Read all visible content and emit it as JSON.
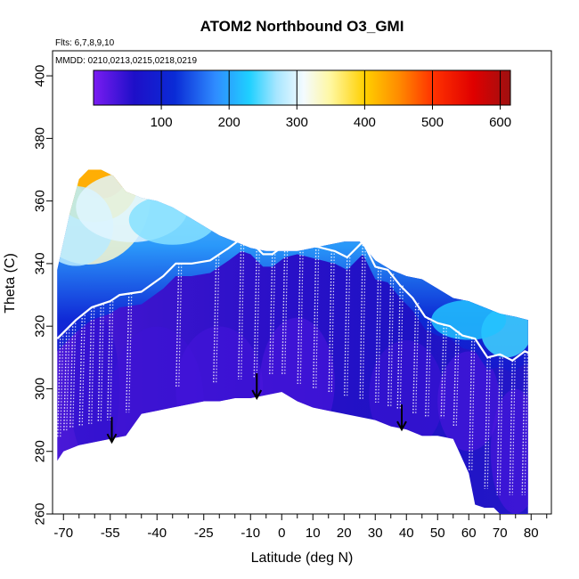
{
  "chart_data": {
    "type": "heatmap",
    "title": "ATOM2 Northbound O3_GMI",
    "subtitle_flights": "Flts: 6,7,8,9,10",
    "subtitle_dates": "MMDD: 0210,0213,0215,0218,0219",
    "xlabel": "Latitude (deg N)",
    "ylabel": "Theta (C)",
    "xlim": [
      -73.5,
      86.5
    ],
    "ylim": [
      260,
      408
    ],
    "x_ticks": [
      -70,
      -55,
      -40,
      -25,
      -10,
      0,
      10,
      20,
      30,
      40,
      50,
      60,
      70,
      80
    ],
    "x_tick_labels": [
      "-70",
      "-55",
      "-40",
      "-25",
      "-10",
      "0",
      "10",
      "20",
      "30",
      "40",
      "50",
      "60",
      "70",
      "80"
    ],
    "x_minor_ticks": [
      -65,
      -60,
      -50,
      -45,
      -35,
      -30,
      -20,
      -15,
      -5,
      5,
      15,
      25,
      35,
      45,
      55,
      65,
      75,
      85
    ],
    "y_ticks": [
      260,
      280,
      300,
      320,
      340,
      360,
      380,
      400
    ],
    "y_tick_labels": [
      "260",
      "280",
      "300",
      "320",
      "340",
      "360",
      "380",
      "400"
    ],
    "colorbar": {
      "range": [
        0,
        615
      ],
      "ticks": [
        100,
        200,
        300,
        400,
        500,
        600
      ],
      "tick_labels": [
        "100",
        "200",
        "300",
        "400",
        "500",
        "600"
      ],
      "colors": [
        {
          "v": 0,
          "c": "#7a1cf2"
        },
        {
          "v": 60,
          "c": "#1e0fc8"
        },
        {
          "v": 120,
          "c": "#0a2bd6"
        },
        {
          "v": 180,
          "c": "#2f8cff"
        },
        {
          "v": 230,
          "c": "#1fd0ff"
        },
        {
          "v": 270,
          "c": "#a7e6ff"
        },
        {
          "v": 310,
          "c": "#f4fbff"
        },
        {
          "v": 350,
          "c": "#fff7a0"
        },
        {
          "v": 400,
          "c": "#ffd000"
        },
        {
          "v": 450,
          "c": "#ff8c00"
        },
        {
          "v": 500,
          "c": "#ff3300"
        },
        {
          "v": 560,
          "c": "#e00000"
        },
        {
          "v": 615,
          "c": "#9e1010"
        }
      ]
    },
    "tropopause_lat": [
      -72,
      -66,
      -61,
      -55,
      -52,
      -45,
      -38,
      -34,
      -29,
      -23,
      -17,
      -13,
      -10,
      -6,
      -3,
      1,
      5,
      9,
      13,
      17,
      21,
      26,
      30,
      34,
      38,
      42,
      46,
      50,
      54,
      58,
      62,
      66,
      70,
      74,
      78,
      82
    ],
    "tropopause_theta": [
      316,
      322,
      326,
      328,
      330,
      331,
      336,
      340,
      340,
      341,
      345,
      348,
      347,
      343,
      343,
      346,
      347,
      346,
      345,
      344,
      342,
      347,
      339,
      338,
      333,
      329,
      323,
      321,
      320,
      317,
      316,
      310,
      311,
      309,
      312,
      310
    ],
    "arrows": [
      {
        "lat": -54.5,
        "theta": 283
      },
      {
        "lat": -8,
        "theta": 297
      },
      {
        "lat": 38.5,
        "theta": 287
      }
    ],
    "data_top_lat": [
      -72,
      -70,
      -68,
      -65,
      -62,
      -58,
      -54,
      -50,
      -45,
      -40,
      -35,
      -30,
      -25,
      -20,
      -15,
      -10,
      -5,
      0,
      5,
      10,
      15,
      20,
      25,
      30,
      35,
      40,
      45,
      50,
      55,
      60,
      65,
      70,
      75,
      79
    ],
    "data_top_theta": [
      338,
      347,
      356,
      367,
      370,
      370,
      368,
      363,
      361,
      360,
      358,
      355,
      352,
      349,
      347,
      345,
      344,
      344,
      344,
      345,
      346,
      347,
      347,
      341,
      338,
      336,
      335,
      332,
      329,
      328,
      326,
      324,
      323,
      322
    ],
    "data_bottom_lat": [
      -72,
      -70,
      -65,
      -60,
      -55,
      -50,
      -45,
      -40,
      -35,
      -30,
      -25,
      -20,
      -15,
      -10,
      -5,
      0,
      5,
      10,
      15,
      20,
      25,
      30,
      35,
      40,
      45,
      50,
      55,
      60,
      62,
      65,
      68,
      70,
      75,
      79
    ],
    "data_bottom_theta": [
      277,
      280,
      282,
      283,
      284,
      285,
      292,
      293,
      294,
      295,
      296,
      296,
      297,
      297,
      298,
      299,
      296,
      294,
      293,
      292,
      291,
      290,
      288,
      287,
      285,
      285,
      284,
      273,
      263,
      262,
      262,
      260,
      260,
      260
    ]
  }
}
